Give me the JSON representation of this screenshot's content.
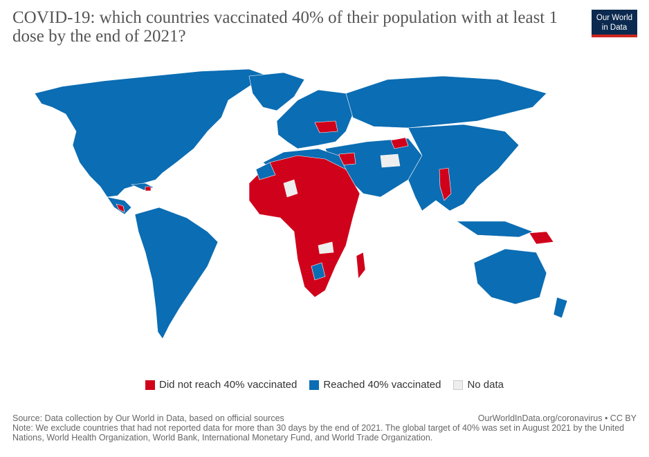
{
  "header": {
    "title": "COVID-19: which countries vaccinated 40% of their population with at least 1 dose by the end of 2021?",
    "logo_line1": "Our World",
    "logo_line2": "in Data"
  },
  "colors": {
    "not_reached": "#d0021b",
    "reached": "#0b6db3",
    "no_data": "#eeeeee",
    "ocean": "#ffffff"
  },
  "legend": [
    {
      "label": "Did not reach 40% vaccinated",
      "color": "#d0021b"
    },
    {
      "label": "Reached 40% vaccinated",
      "color": "#0b6db3"
    },
    {
      "label": "No data",
      "color": "#eeeeee"
    }
  ],
  "footer": {
    "source": "Source: Data collection by Our World in Data, based on official sources",
    "url": "OurWorldInData.org/coronavirus • CC BY",
    "note": "Note: We exclude countries that had not reported data for more than 30 days by the end of 2021. The global target of 40% was set in August 2021 by the United Nations, World Health Organization, World Bank, International Monetary Fund, and World Trade Organization."
  }
}
